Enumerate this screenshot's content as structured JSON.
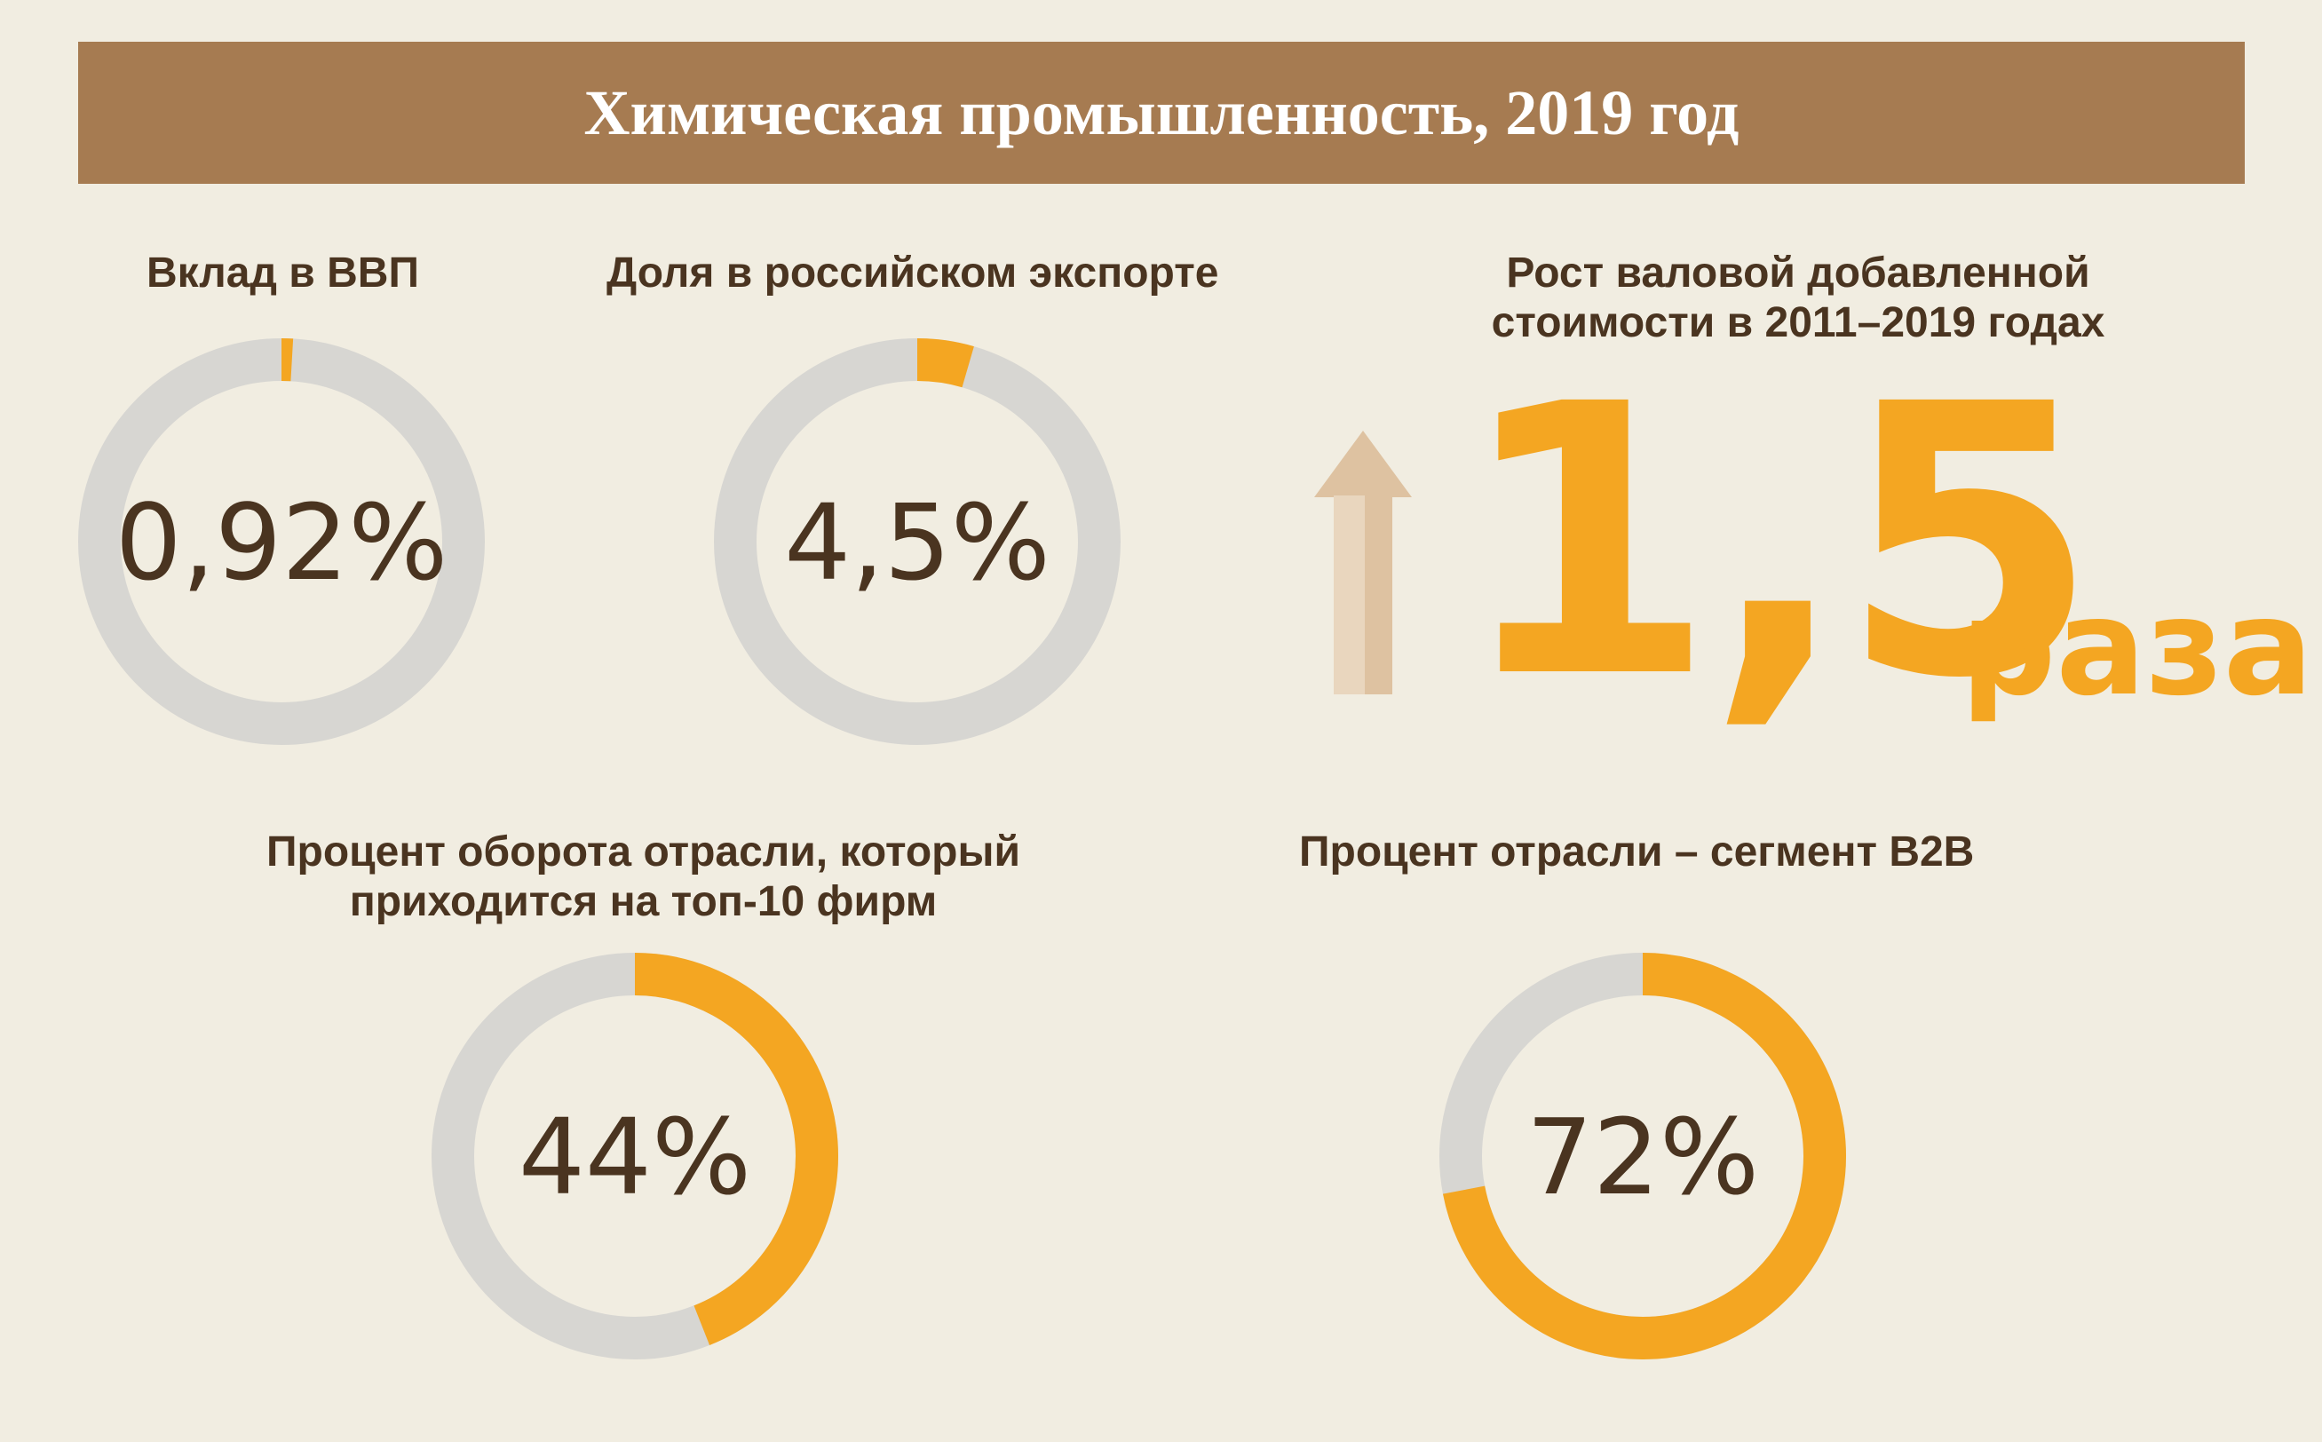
{
  "title": "Химическая промышленность, 2019 год",
  "colors": {
    "banner": "#a67b51",
    "background": "#f1ede1",
    "accent": "#f4a622",
    "track": "#d7d6d2",
    "text": "#4a3420",
    "arrow": "#dec2a1"
  },
  "chart_data": [
    {
      "type": "pie",
      "variant": "donut",
      "title": "Вклад в ВВП",
      "value_label": "0,92%",
      "value": 0.92,
      "max": 100
    },
    {
      "type": "pie",
      "variant": "donut",
      "title": "Доля в российском экспорте",
      "value_label": "4,5%",
      "value": 4.5,
      "max": 100
    },
    {
      "type": "pie",
      "variant": "donut",
      "title_lines": [
        "Процент оборота отрасли, который",
        "приходится на топ-10 фирм"
      ],
      "value_label": "44%",
      "value": 44,
      "max": 100
    },
    {
      "type": "pie",
      "variant": "donut",
      "title": "Процент отрасли – сегмент B2B",
      "value_label": "72%",
      "value": 72,
      "max": 100
    }
  ],
  "growth": {
    "title_lines": [
      "Рост валовой добавленной",
      "стоимости в 2011–2019 годах"
    ],
    "number": "1,5",
    "unit": "раза",
    "icon": "up-arrow-icon"
  }
}
